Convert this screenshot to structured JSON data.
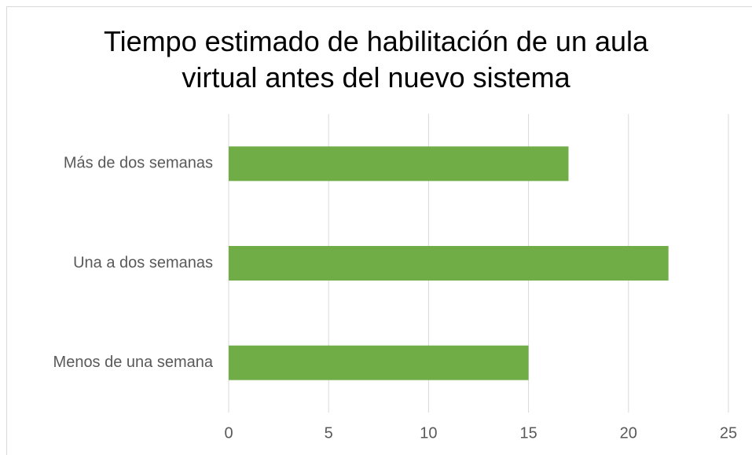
{
  "chart_data": {
    "type": "barh",
    "title": "Tiempo estimado de habilitación de un aula virtual antes del nuevo sistema",
    "categories": [
      "Más de dos semanas",
      "Una a dos semanas",
      "Menos de una semana"
    ],
    "values": [
      17,
      22,
      15
    ],
    "color": "#70ad47",
    "xlim": [
      0,
      25
    ],
    "xticks": [
      0,
      5,
      10,
      15,
      20,
      25
    ],
    "grid": true
  }
}
